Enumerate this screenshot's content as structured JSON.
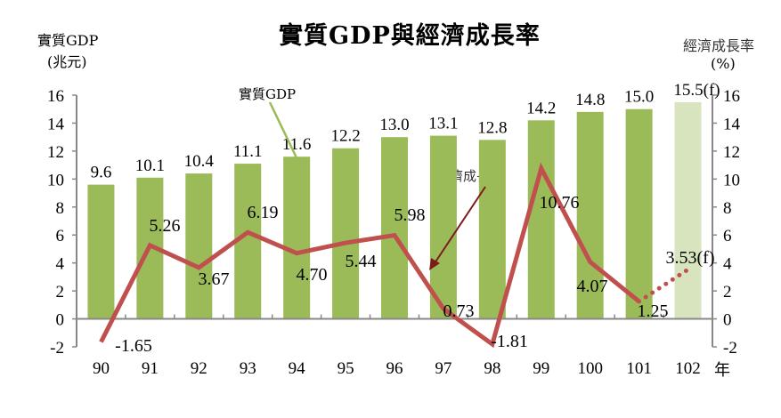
{
  "chart_data": {
    "type": "bar+line",
    "title": "實質GDP與經濟成長率",
    "ylabel_left": [
      "實質GDP",
      "(兆元)"
    ],
    "ylabel_right": [
      "經濟成長率",
      "(%)"
    ],
    "x_unit": "年",
    "categories": [
      "90",
      "91",
      "92",
      "93",
      "94",
      "95",
      "96",
      "97",
      "98",
      "99",
      "100",
      "101",
      "102"
    ],
    "ylim": [
      -2,
      16
    ],
    "yticks": [
      -2,
      0,
      2,
      4,
      6,
      8,
      10,
      12,
      14,
      16
    ],
    "bar_series": {
      "name": "實質GDP",
      "values": [
        9.6,
        10.1,
        10.4,
        11.1,
        11.6,
        12.2,
        13.0,
        13.1,
        12.8,
        14.2,
        14.8,
        15.0,
        15.5
      ],
      "labels": [
        "9.6",
        "10.1",
        "10.4",
        "11.1",
        "11.6",
        "12.2",
        "13.0",
        "13.1",
        "12.8",
        "14.2",
        "14.8",
        "15.0",
        "15.5(f)"
      ],
      "color": "#9BBB59",
      "forecast_color": "#D7E4BD"
    },
    "line_series": {
      "name": "經濟成長率",
      "values": [
        -1.65,
        5.26,
        3.67,
        6.19,
        4.7,
        5.44,
        5.98,
        0.73,
        -1.81,
        10.76,
        4.07,
        1.25,
        3.53
      ],
      "labels": [
        "-1.65",
        "5.26",
        "3.67",
        "6.19",
        "4.70",
        "5.44",
        "5.98",
        "0.73",
        "-1.81",
        "10.76",
        "4.07",
        "1.25",
        "3.53(f)"
      ],
      "color": "#C0504D"
    },
    "forecast_index": 12
  }
}
